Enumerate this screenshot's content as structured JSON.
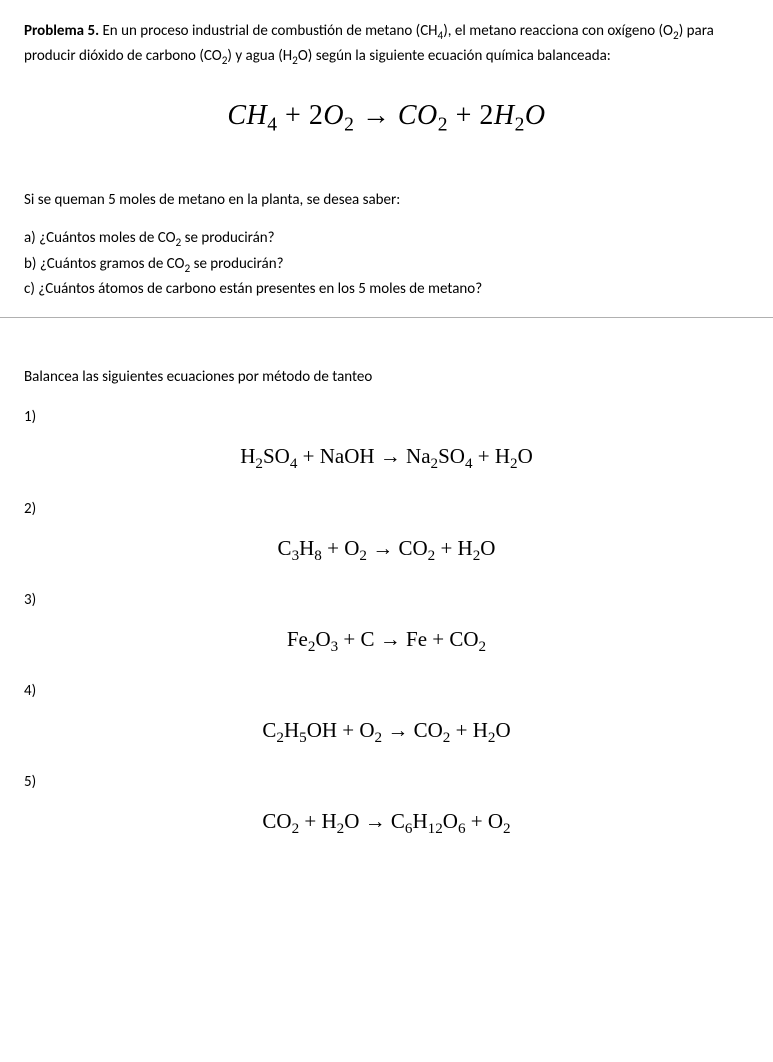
{
  "problem": {
    "label": "Problema 5.",
    "text_part1": " En un proceso industrial de combustión de metano (CH",
    "text_part2": "), el metano reacciona con oxígeno (O",
    "text_part3": ") para producir dióxido de carbono (CO",
    "text_part4": ") y agua (H",
    "text_part5": "O) según la siguiente ecuación química balanceada:"
  },
  "main_equation": {
    "reactant1": "CH",
    "reactant1_sub": "4",
    "plus1": " + ",
    "coeff1": "2",
    "reactant2": "O",
    "reactant2_sub": "2",
    "arrow": " → ",
    "product1": "CO",
    "product1_sub": "2",
    "plus2": " + ",
    "coeff2": "2",
    "product2a": "H",
    "product2a_sub": "2",
    "product2b": "O"
  },
  "intro": "Si se queman 5 moles de metano en la planta, se desea saber:",
  "questions": {
    "a_pre": "a) ¿Cuántos moles de CO",
    "a_post": " se producirán?",
    "b_pre": "b) ¿Cuántos gramos de CO",
    "b_post": " se producirán?",
    "c": "c) ¿Cuántos átomos de carbono están presentes en los 5 moles de metano?"
  },
  "balance": {
    "intro": "Balancea las siguientes ecuaciones por método de tanteo",
    "items": [
      {
        "num": "1)",
        "html": "H<span class=\"sub\">2</span>SO<span class=\"sub\">4</span> + NaOH <span class=\"arrow\">→</span> Na<span class=\"sub\">2</span>SO<span class=\"sub\">4</span> + H<span class=\"sub\">2</span>O"
      },
      {
        "num": "2)",
        "html": "C<span class=\"sub\">3</span>H<span class=\"sub\">8</span> + O<span class=\"sub\">2</span> <span class=\"arrow\">→</span> CO<span class=\"sub\">2</span> + H<span class=\"sub\">2</span>O"
      },
      {
        "num": "3)",
        "html": "Fe<span class=\"sub\">2</span>O<span class=\"sub\">3</span> + C <span class=\"arrow\">→</span> Fe + CO<span class=\"sub\">2</span>"
      },
      {
        "num": "4)",
        "html": "C<span class=\"sub\">2</span>H<span class=\"sub\">5</span>OH + O<span class=\"sub\">2</span> <span class=\"arrow\">→</span> CO<span class=\"sub\">2</span> + H<span class=\"sub\">2</span>O"
      },
      {
        "num": "5)",
        "html": "CO<span class=\"sub\">2</span> + H<span class=\"sub\">2</span>O <span class=\"arrow\">→</span> C<span class=\"sub\">6</span>H<span class=\"sub\">12</span>O<span class=\"sub\">6</span> + O<span class=\"sub\">2</span>"
      }
    ]
  }
}
